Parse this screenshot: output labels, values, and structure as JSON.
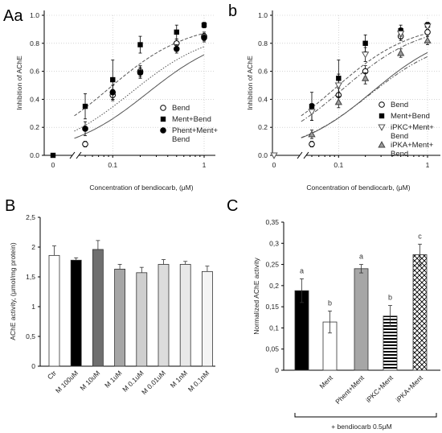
{
  "panels": {
    "Aa": "Aa",
    "b": "b",
    "B": "B",
    "C": "C"
  },
  "chart_data": [
    {
      "id": "Aa",
      "type": "scatter",
      "xlabel": "Concentration of bendiocarb, (μM)",
      "ylabel": "Inhibition of AChE",
      "xscale": "log",
      "xticks": [
        "0",
        "0.1",
        "1"
      ],
      "yticks": [
        "0.0",
        "0.2",
        "0.4",
        "0.6",
        "0.8",
        "1.0"
      ],
      "ylim": [
        0,
        1.0
      ],
      "zero_points": [
        {
          "x": 0,
          "y": 0.0,
          "marker": "square"
        }
      ],
      "series": [
        {
          "name": "Bend",
          "marker": "circle-open",
          "line": "solid",
          "x": [
            0.05,
            0.1,
            0.2,
            0.5,
            1
          ],
          "y": [
            0.08,
            0.43,
            0.6,
            0.8,
            0.85
          ],
          "err": [
            0.02,
            0.04,
            0.04,
            0.03,
            0.03
          ],
          "curve": [
            0.24,
            0.89
          ]
        },
        {
          "name": "Ment+Bend",
          "marker": "square-filled",
          "line": "dashed",
          "x": [
            0.05,
            0.1,
            0.2,
            0.5,
            1
          ],
          "y": [
            0.35,
            0.54,
            0.79,
            0.88,
            0.93
          ],
          "err": [
            0.09,
            0.14,
            0.06,
            0.05,
            0.02
          ],
          "curve": [
            0.09,
            0.95
          ]
        },
        {
          "name": "Phent+Ment+Bend",
          "marker": "circle-filled",
          "line": "dotted",
          "x": [
            0.05,
            0.1,
            0.2,
            0.5,
            1
          ],
          "y": [
            0.19,
            0.45,
            0.59,
            0.76,
            0.84
          ],
          "err": [
            0.05,
            0.05,
            0.04,
            0.03,
            0.03
          ],
          "curve": [
            0.16,
            0.9
          ]
        }
      ]
    },
    {
      "id": "b",
      "type": "scatter",
      "xlabel": "Concentration of bendiocarb, (μM)",
      "ylabel": "Inhibition of AChE",
      "xscale": "log",
      "xticks": [
        "0",
        "0.1",
        "1"
      ],
      "yticks": [
        "0.0",
        "0.2",
        "0.4",
        "0.6",
        "0.8",
        "1.0"
      ],
      "ylim": [
        0,
        1.0
      ],
      "zero_points": [
        {
          "x": 0,
          "y": 0.0,
          "marker": "triangle-down-open"
        }
      ],
      "series": [
        {
          "name": "Bend",
          "marker": "circle-open",
          "line": "solid",
          "x": [
            0.05,
            0.1,
            0.2,
            0.5,
            1
          ],
          "y": [
            0.08,
            0.43,
            0.6,
            0.85,
            0.88
          ],
          "err": [
            0.02,
            0.05,
            0.04,
            0.03,
            0.03
          ],
          "curve": [
            0.24,
            0.91
          ]
        },
        {
          "name": "Ment+Bend",
          "marker": "square-filled",
          "line": "dashed",
          "x": [
            0.05,
            0.1,
            0.2,
            0.5,
            1
          ],
          "y": [
            0.35,
            0.55,
            0.8,
            0.89,
            0.93
          ],
          "err": [
            0.1,
            0.13,
            0.06,
            0.04,
            0.02
          ],
          "curve": [
            0.09,
            0.95
          ]
        },
        {
          "name": "iPKC+Ment+ Bend",
          "marker": "triangle-down-open",
          "line": "dashdot",
          "x": [
            0.05,
            0.1,
            0.2,
            0.5,
            1
          ],
          "y": [
            0.31,
            0.5,
            0.72,
            0.87,
            0.92
          ],
          "err": [
            0.06,
            0.08,
            0.05,
            0.04,
            0.02
          ],
          "curve": [
            0.11,
            0.94
          ]
        },
        {
          "name": "iPKA+Ment+ Bend",
          "marker": "triangle-up-gray",
          "line": "dashdotdot",
          "x": [
            0.05,
            0.1,
            0.2,
            0.5,
            1
          ],
          "y": [
            0.15,
            0.38,
            0.55,
            0.73,
            0.82
          ],
          "err": [
            0.03,
            0.04,
            0.04,
            0.03,
            0.03
          ],
          "curve": [
            0.22,
            0.86
          ]
        }
      ]
    },
    {
      "id": "B",
      "type": "bar",
      "ylabel": "AChE activity, (μmol/mg protein)",
      "yticks": [
        "0",
        "0,5",
        "1",
        "1,5",
        "2",
        "2,5"
      ],
      "ylim": [
        0,
        2.5
      ],
      "categories": [
        "Ctr",
        "M 100uM",
        "M 10uM",
        "M 1uM",
        "M 0.1uM",
        "M 0.01uM",
        "M 1nM",
        "M 0.1nM"
      ],
      "values": [
        1.86,
        1.78,
        1.96,
        1.63,
        1.57,
        1.71,
        1.71,
        1.59
      ],
      "errors": [
        0.16,
        0.04,
        0.15,
        0.08,
        0.09,
        0.08,
        0.05,
        0.09
      ],
      "colors": [
        "#ffffff",
        "#000000",
        "#6f6f6f",
        "#a6a6a6",
        "#cfcfcf",
        "#dcdcdc",
        "#e8e8e8",
        "#f4f4f4"
      ]
    },
    {
      "id": "C",
      "type": "bar",
      "ylabel": "Normalized AChE activity",
      "yticks": [
        "0",
        "0,05",
        "0,1",
        "0,15",
        "0,2",
        "0,25",
        "0,3",
        "0,35"
      ],
      "ylim": [
        0,
        0.35
      ],
      "categories": [
        "Ment",
        "Phent+Ment",
        "iPKC+Ment",
        "iPKA+Ment"
      ],
      "bars": [
        {
          "value": 0.188,
          "error": 0.028,
          "letter": "a",
          "fill": "#000000",
          "pattern": "solid"
        },
        {
          "value": 0.114,
          "error": 0.026,
          "letter": "b",
          "fill": "#ffffff",
          "pattern": "solid"
        },
        {
          "value": 0.24,
          "error": 0.01,
          "letter": "a",
          "fill": "#a6a6a6",
          "pattern": "solid"
        },
        {
          "value": 0.128,
          "error": 0.025,
          "letter": "b",
          "fill": "#ffffff",
          "pattern": "hlines"
        },
        {
          "value": 0.273,
          "error": 0.025,
          "letter": "c",
          "fill": "#ffffff",
          "pattern": "crosshatch"
        }
      ],
      "bracket_label": "+ bendiocarb  0.5μM"
    }
  ]
}
